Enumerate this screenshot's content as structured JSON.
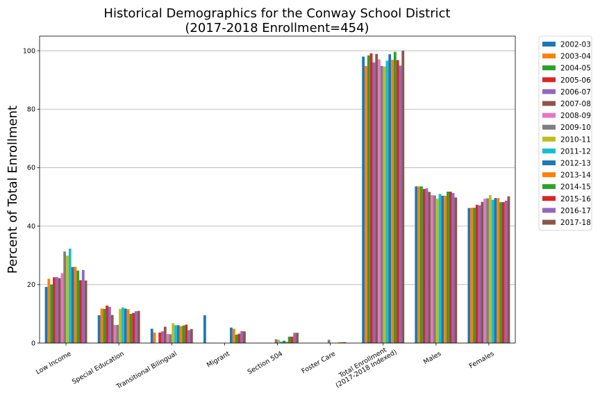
{
  "chart_data": {
    "type": "bar",
    "title": [
      "Historical Demographics for the Conway School District",
      "(2017-2018 Enrollment=454)"
    ],
    "xlabel": "",
    "ylabel": "Percent of Total Enrollment",
    "ylim": [
      0,
      105
    ],
    "yticks": [
      0,
      20,
      40,
      60,
      80,
      100
    ],
    "grid": "y",
    "legend_position": "outside-right",
    "categories": [
      [
        "Low Income"
      ],
      [
        "Special Education"
      ],
      [
        "Transitional Bilingual"
      ],
      [
        "Migrant"
      ],
      [
        "Section 504"
      ],
      [
        "Foster Care"
      ],
      [
        "Total Enrollment",
        "(2017-2018 Indexed)"
      ],
      [
        "Males"
      ],
      [
        "Females"
      ]
    ],
    "series": [
      {
        "name": "2002-03",
        "color": "#1f77b4",
        "values": [
          19.2,
          9.5,
          4.9,
          9.5,
          0,
          0,
          98.0,
          53.6,
          46.2
        ]
      },
      {
        "name": "2003-04",
        "color": "#ff7f0e",
        "values": [
          22.0,
          11.8,
          3.6,
          0,
          0,
          0,
          94.8,
          53.6,
          46.3
        ]
      },
      {
        "name": "2004-05",
        "color": "#2ca02c",
        "values": [
          20.0,
          11.7,
          0,
          0,
          0,
          0,
          98.4,
          53.6,
          46.3
        ]
      },
      {
        "name": "2005-06",
        "color": "#d62728",
        "values": [
          22.5,
          12.8,
          3.6,
          0,
          0,
          0,
          99.1,
          52.7,
          47.3
        ]
      },
      {
        "name": "2006-07",
        "color": "#9467bd",
        "values": [
          22.6,
          12.4,
          4.0,
          0,
          0,
          0,
          96.0,
          52.9,
          47.1
        ]
      },
      {
        "name": "2007-08",
        "color": "#8c564b",
        "values": [
          22.2,
          9.6,
          5.6,
          0,
          0,
          0,
          98.9,
          51.7,
          48.3
        ]
      },
      {
        "name": "2008-09",
        "color": "#e377c2",
        "values": [
          23.9,
          6.2,
          3.1,
          0,
          0,
          0,
          97.0,
          50.6,
          49.4
        ]
      },
      {
        "name": "2009-10",
        "color": "#7f7f7f",
        "values": [
          31.3,
          6.2,
          3.0,
          0,
          1.3,
          1.1,
          94.8,
          50.5,
          49.5
        ]
      },
      {
        "name": "2010-11",
        "color": "#bcbd22",
        "values": [
          29.9,
          11.7,
          6.8,
          0,
          1.1,
          0,
          94.6,
          49.4,
          50.6
        ]
      },
      {
        "name": "2011-12",
        "color": "#17becf",
        "values": [
          32.3,
          12.2,
          6.1,
          0,
          0.5,
          0,
          96.6,
          51.0,
          49.0
        ]
      },
      {
        "name": "2012-13",
        "color": "#1f77b4",
        "values": [
          26.0,
          11.8,
          6.1,
          5.3,
          0.8,
          0,
          98.8,
          50.4,
          49.6
        ]
      },
      {
        "name": "2013-14",
        "color": "#ff7f0e",
        "values": [
          26.1,
          11.6,
          5.8,
          4.9,
          0.5,
          0.3,
          96.9,
          50.4,
          49.6
        ]
      },
      {
        "name": "2014-15",
        "color": "#2ca02c",
        "values": [
          24.8,
          10.0,
          6.0,
          2.9,
          2.2,
          0.3,
          99.6,
          51.8,
          48.2
        ]
      },
      {
        "name": "2015-16",
        "color": "#d62728",
        "values": [
          21.5,
          10.3,
          6.3,
          3.2,
          2.2,
          0.3,
          96.8,
          51.8,
          48.2
        ]
      },
      {
        "name": "2016-17",
        "color": "#9467bd",
        "values": [
          25.0,
          10.9,
          4.4,
          4.1,
          3.5,
          0,
          94.9,
          51.3,
          48.7
        ]
      },
      {
        "name": "2017-18",
        "color": "#8c564b",
        "values": [
          21.4,
          11.0,
          4.8,
          4.0,
          3.5,
          0,
          100.0,
          49.8,
          50.2
        ]
      }
    ]
  }
}
